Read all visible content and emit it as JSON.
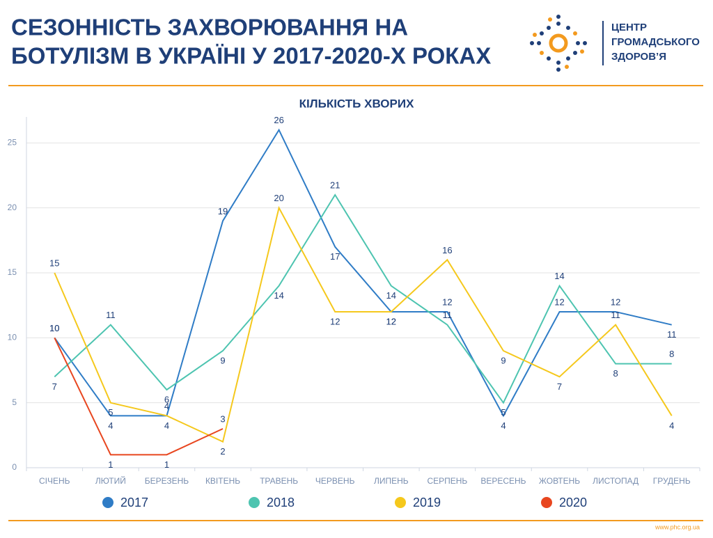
{
  "header": {
    "title_lines": [
      "СЕЗОННІСТЬ ЗАХВОРЮВАННЯ НА",
      "БОТУЛІЗМ В УКРАЇНІ У 2017-2020-Х РОКАХ"
    ],
    "org_lines": [
      "ЦЕНТР",
      "ГРОМАДСЬКОГО",
      "ЗДОРОВ’Я"
    ]
  },
  "footer": {
    "url": "www.phc.org.ua"
  },
  "chart_data": {
    "type": "line",
    "title": "КІЛЬКІСТЬ ХВОРИХ",
    "categories": [
      "СІЧЕНЬ",
      "ЛЮТИЙ",
      "БЕРЕЗЕНЬ",
      "КВІТЕНЬ",
      "ТРАВЕНЬ",
      "ЧЕРВЕНЬ",
      "ЛИПЕНЬ",
      "СЕРПЕНЬ",
      "ВЕРЕСЕНЬ",
      "ЖОВТЕНЬ",
      "ЛИСТОПАД",
      "ГРУДЕНЬ"
    ],
    "series": [
      {
        "name": "2017",
        "color": "#2f7cc6",
        "values": [
          10,
          4,
          4,
          19,
          26,
          17,
          12,
          12,
          4,
          12,
          12,
          11
        ]
      },
      {
        "name": "2018",
        "color": "#4dc4b0",
        "values": [
          7,
          11,
          6,
          9,
          14,
          21,
          14,
          11,
          5,
          14,
          8,
          8
        ]
      },
      {
        "name": "2019",
        "color": "#f5c81c",
        "values": [
          15,
          5,
          4,
          2,
          20,
          12,
          12,
          16,
          9,
          7,
          11,
          4
        ]
      },
      {
        "name": "2020",
        "color": "#e8461f",
        "values": [
          10,
          1,
          1,
          3,
          null,
          null,
          null,
          null,
          null,
          null,
          null,
          null
        ]
      }
    ],
    "ylim": [
      0,
      27
    ],
    "yticks": [
      0,
      5,
      10,
      15,
      20,
      25
    ],
    "grid": true
  }
}
